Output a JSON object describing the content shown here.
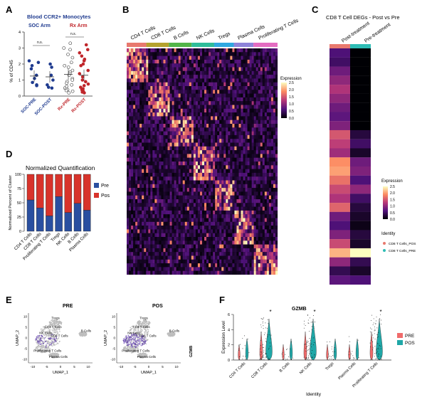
{
  "panels": {
    "A": {
      "letter": "A",
      "title": "Blood CCR2+ Monocytes",
      "arm_soc": "SOC Arm",
      "arm_rx": "Rx Arm",
      "ylabel": "% of CD45",
      "yticks": [
        "0",
        "1",
        "2",
        "3",
        "4"
      ],
      "sig": [
        "n.s.",
        "n.s."
      ],
      "groups": [
        "SOC-PRE",
        "SOC-POST",
        "Rx-PRE",
        "Rx-POST"
      ],
      "colors": {
        "soc": "#1f3b8f",
        "rx": "#c0262b"
      },
      "group_means": [
        1.25,
        1.2,
        1.35,
        1.3
      ],
      "points": {
        "soc_pre": [
          2.2,
          2.1,
          1.9,
          1.7,
          1.3,
          1.1,
          0.85,
          0.7,
          0.65
        ],
        "soc_post": [
          2.0,
          1.8,
          1.3,
          1.0,
          0.7,
          0.55,
          0.5
        ],
        "rx_pre": [
          3.3,
          3.0,
          2.9,
          2.6,
          2.4,
          2.1,
          1.9,
          1.8,
          1.6,
          1.5,
          1.4,
          1.3,
          1.1,
          1.0,
          0.9,
          0.8,
          0.7,
          0.6,
          0.5,
          0.45,
          0.4,
          0.35,
          0.3,
          0.2
        ],
        "rx_post": [
          3.2,
          2.9,
          2.7,
          2.5,
          2.3,
          2.2,
          2.0,
          1.9,
          1.6,
          1.4,
          1.2,
          1.0,
          0.9,
          0.75,
          0.65,
          0.55,
          0.45,
          0.4,
          0.35,
          0.3,
          0.25,
          0.2
        ]
      }
    },
    "B": {
      "letter": "B",
      "clusters": [
        "CD4  T Cells",
        "CD8  T Cells",
        "B Cells",
        "NK Cells",
        "Tregs",
        "Plasma Cells",
        "Proliferating  T Cells"
      ],
      "cluster_colors": [
        "#e8796e",
        "#b5a22e",
        "#52b548",
        "#2ebd9a",
        "#2fa8e0",
        "#8e83d9",
        "#e36cc1"
      ],
      "legend_title": "Expression",
      "legend_ticks": [
        "2.5",
        "2.0",
        "1.5",
        "1.0",
        "0.5",
        "0.0"
      ]
    },
    "C": {
      "letter": "C",
      "title": "CD8 T Cell DEGs - Post vs Pre",
      "columns": [
        "Post-treatment",
        "Pre-treatment"
      ],
      "column_colors": [
        "#e8796e",
        "#2ebdb5"
      ],
      "expression_title": "Expression",
      "expression_ticks": [
        "2.5",
        "2.0",
        "1.5",
        "1.0",
        "0.5",
        "0.0"
      ],
      "identity_title": "Identity",
      "identity_items": [
        "CD8 T Cells_POS",
        "CD8 T Cells_PRE"
      ],
      "post_values": [
        0.6,
        0.5,
        0.8,
        1.0,
        1.2,
        1.0,
        0.8,
        0.7,
        0.9,
        1.5,
        1.3,
        1.1,
        1.9,
        2.0,
        1.7,
        1.4,
        1.2,
        1.6,
        0.8,
        0.6,
        0.9,
        1.4,
        2.1,
        1.0,
        0.4,
        0.7
      ],
      "pre_values": [
        0.0,
        0.0,
        0.0,
        0.0,
        0.0,
        0.0,
        0.0,
        0.0,
        0.0,
        0.3,
        0.5,
        0.2,
        0.8,
        0.9,
        0.6,
        1.0,
        0.5,
        0.3,
        0.2,
        0.1,
        0.3,
        0.2,
        2.5,
        0.4,
        0.2,
        0.6
      ]
    },
    "D": {
      "letter": "D",
      "title": "Normalized Quantification",
      "ylabel": "Normalized Percent of Cluster",
      "yticks": [
        "0",
        "25",
        "50",
        "75",
        "100"
      ],
      "legend": [
        "Pre",
        "Pos"
      ],
      "colors": {
        "pre": "#2a4fa0",
        "pos": "#d8332b"
      },
      "chart_data": {
        "type": "bar",
        "categories": [
          "CD4 T Cells",
          "CD8 T Cells",
          "Proliferating T Cells",
          "Tregs",
          "NK Cells",
          "B Cells",
          "Plasma Cells"
        ],
        "series": [
          {
            "name": "Pre",
            "values": [
              55,
              41,
              27,
              61,
              33,
              49,
              37
            ]
          },
          {
            "name": "Pos",
            "values": [
              45,
              59,
              73,
              39,
              67,
              51,
              63
            ]
          }
        ],
        "ylim": [
          0,
          100
        ],
        "stacked": true
      }
    },
    "E": {
      "letter": "E",
      "plots": [
        {
          "title": "PRE",
          "labels": [
            "Tregs",
            "CD4 T Cells",
            "B Cells",
            "NK Cells",
            "CD8 T Cells",
            "Proliferating T Cells",
            "Plasma Cells"
          ]
        },
        {
          "title": "POS",
          "labels": [
            "Tregs",
            "CD4 T Cells",
            "B Cells",
            "NK Cells",
            "CD8 T Cells",
            "Proliferating T Cells",
            "Plasma Cells"
          ]
        }
      ],
      "xlabel": "UMAP_1",
      "ylabel": "UMAP_2",
      "xticks": [
        "-10",
        "-5",
        "0",
        "5",
        "10"
      ],
      "yticks": [
        "10",
        "5",
        "0",
        "-5",
        "-10"
      ],
      "gene": "GZMB"
    },
    "F": {
      "letter": "F",
      "title": "GZMB",
      "ylabel": "Expression Level",
      "yticks": [
        "6",
        "4",
        "2",
        "0"
      ],
      "xlabel": "Identity",
      "categories": [
        "CD4 T Cells",
        "CD8 T Cells",
        "B Cells",
        "NK Cells",
        "Tregs",
        "Plasma Cells",
        "Proliferating T Cells"
      ],
      "star": "*",
      "legend": [
        "PRE",
        "POS"
      ],
      "colors": {
        "pre": "#f06b6b",
        "pos": "#1fa7a7"
      }
    }
  }
}
